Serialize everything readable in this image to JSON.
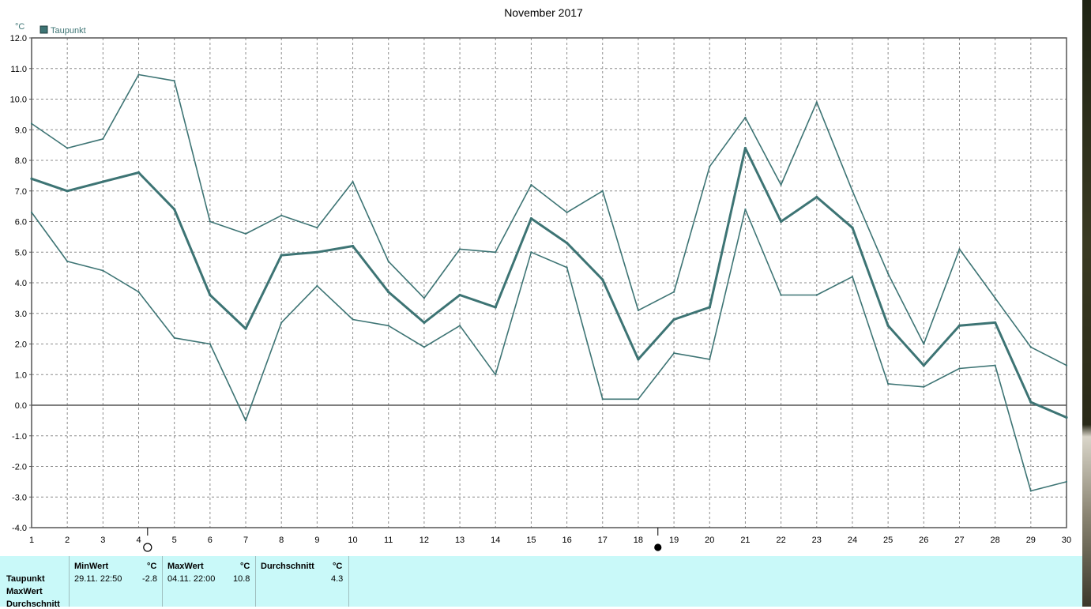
{
  "chart_data": {
    "type": "line",
    "title": "November 2017",
    "ylabel": "°C",
    "legend": {
      "entries": [
        "Taupunkt"
      ],
      "placement": "top-left",
      "color": "#3d7474"
    },
    "x": [
      1,
      2,
      3,
      4,
      5,
      6,
      7,
      8,
      9,
      10,
      11,
      12,
      13,
      14,
      15,
      16,
      17,
      18,
      19,
      20,
      21,
      22,
      23,
      24,
      25,
      26,
      27,
      28,
      29,
      30
    ],
    "ylim": [
      -4.0,
      12.0
    ],
    "yticks": [
      "12.0",
      "11.0",
      "10.0",
      "9.0",
      "8.0",
      "7.0",
      "6.0",
      "5.0",
      "4.0",
      "3.0",
      "2.0",
      "1.0",
      "0.0",
      "-1.0",
      "-2.0",
      "-3.0",
      "-4.0"
    ],
    "xticks": [
      "1",
      "2",
      "3",
      "4",
      "5",
      "6",
      "7",
      "8",
      "9",
      "10",
      "11",
      "12",
      "13",
      "14",
      "15",
      "16",
      "17",
      "18",
      "19",
      "20",
      "21",
      "22",
      "23",
      "24",
      "25",
      "26",
      "27",
      "28",
      "29",
      "30"
    ],
    "grid": true,
    "series": [
      {
        "values": [
          9.2,
          8.4,
          8.7,
          10.8,
          10.6,
          6.0,
          5.6,
          6.2,
          5.8,
          7.3,
          4.7,
          3.5,
          5.1,
          5.0,
          7.2,
          6.3,
          7.0,
          3.1,
          3.7,
          7.8,
          9.4,
          7.2,
          9.9,
          7.0,
          4.3,
          2.0,
          5.1,
          3.5,
          1.9,
          1.3
        ]
      },
      {
        "values": [
          7.4,
          7.0,
          7.3,
          7.6,
          6.4,
          3.6,
          2.5,
          4.9,
          5.0,
          5.2,
          3.7,
          2.7,
          3.6,
          3.2,
          6.1,
          5.3,
          4.1,
          1.5,
          2.8,
          3.2,
          8.4,
          6.0,
          6.8,
          5.8,
          2.6,
          1.3,
          2.6,
          2.7,
          0.1,
          -0.4
        ]
      },
      {
        "values": [
          6.3,
          4.7,
          4.4,
          3.7,
          2.2,
          2.0,
          -0.5,
          2.7,
          3.9,
          2.8,
          2.6,
          1.9,
          2.6,
          1.0,
          5.0,
          4.5,
          0.2,
          0.2,
          1.7,
          1.5,
          6.4,
          3.6,
          3.6,
          4.2,
          0.7,
          0.6,
          1.2,
          1.3,
          -2.8,
          -2.5
        ]
      }
    ],
    "markers": [
      {
        "day": 4.25,
        "symbol": "full-moon-icon"
      },
      {
        "day": 18.55,
        "symbol": "new-moon-icon"
      }
    ],
    "colors": {
      "line": "#3d7474",
      "axis": "#555555",
      "grid": "#8c8c8c",
      "panel": "#c9f9f9"
    }
  },
  "stats": {
    "row_labels": [
      "Taupunkt",
      "MaxWert",
      "Durchschnitt"
    ],
    "min_header": "MinWert",
    "max_header": "MaxWert",
    "avg_header": "Durchschnitt",
    "unit": "°C",
    "min_time": "29.11.  22:50",
    "min_value": "-2.8",
    "max_time": "04.11.  22:00",
    "max_value": "10.8",
    "avg_value": "4.3"
  }
}
